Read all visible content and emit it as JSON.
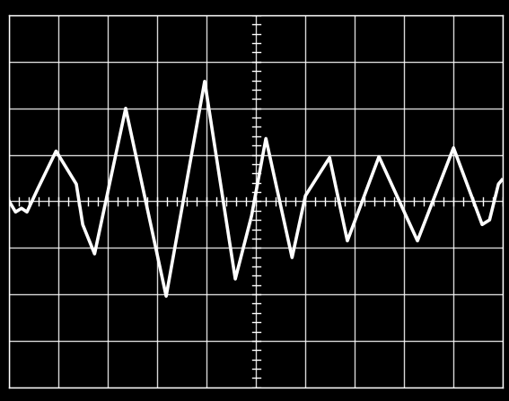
{
  "chart_data": {
    "type": "line",
    "x": [
      -5.0,
      -4.87,
      -4.75,
      -4.64,
      -4.42,
      -4.05,
      -3.64,
      -3.51,
      -3.27,
      -2.64,
      -1.82,
      -1.04,
      -0.42,
      -0.09,
      0.2,
      0.73,
      1.0,
      1.49,
      1.85,
      2.49,
      3.27,
      4.0,
      4.58,
      4.73,
      4.91,
      4.98
    ],
    "values": [
      0.0,
      -0.23,
      -0.15,
      -0.23,
      0.27,
      1.08,
      0.37,
      -0.5,
      -1.13,
      2.0,
      -2.04,
      2.58,
      -1.67,
      -0.31,
      1.35,
      -1.21,
      0.12,
      0.94,
      -0.85,
      0.96,
      -0.85,
      1.15,
      -0.5,
      -0.4,
      0.37,
      0.46
    ],
    "color": "#ffffff",
    "xlim": [
      -5,
      5
    ],
    "ylim": [
      -4,
      4
    ],
    "xticks": [
      -5,
      -4,
      -3,
      -2,
      -1,
      0,
      1,
      2,
      3,
      4,
      5
    ],
    "yticks": [
      -4,
      -3,
      -2,
      -1,
      0,
      1,
      2,
      3,
      4
    ],
    "grid": true,
    "tick_labels": false
  }
}
